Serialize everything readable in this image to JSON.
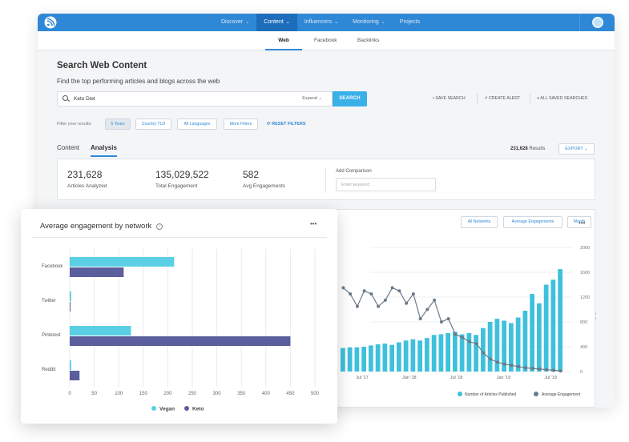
{
  "topnav": {
    "items": [
      {
        "label": "Discover",
        "chevron": true,
        "active": false
      },
      {
        "label": "Content",
        "chevron": true,
        "active": true
      },
      {
        "label": "Influencers",
        "chevron": true,
        "active": false
      },
      {
        "label": "Monitoring",
        "chevron": true,
        "active": false
      },
      {
        "label": "Projects",
        "chevron": false,
        "active": false
      }
    ],
    "accent": "#2f88d6"
  },
  "subtabs": [
    "Web",
    "Facebook",
    "Backlinks"
  ],
  "page": {
    "title": "Search Web Content",
    "subtitle": "Find the top performing articles and blogs across the web"
  },
  "search": {
    "value": "Keto Diet",
    "expand_label": "Expand",
    "button_label": "SEARCH"
  },
  "actions": {
    "save_search": "SAVE SEARCH",
    "create_alert": "CREATE ALERT",
    "all_saved": "ALL SAVED SEARCHES"
  },
  "filters": {
    "label": "Filter your results:",
    "chips": [
      "5 Years",
      "Country TLD",
      "All Languages",
      "More Filters"
    ],
    "reset": "RESET FILTERS"
  },
  "view_tabs": {
    "content": "Content",
    "analysis": "Analysis"
  },
  "results": {
    "count": "231,628",
    "suffix": "Results",
    "export_label": "EXPORT"
  },
  "stats": [
    {
      "value": "231,628",
      "label": "Articles Analyzed"
    },
    {
      "value": "135,029,522",
      "label": "Total Engagement"
    },
    {
      "value": "582",
      "label": "Avg Engagements"
    }
  ],
  "comparison": {
    "label": "Add Comparison",
    "placeholder": "Enter keyword"
  },
  "chart_controls": [
    "All Networks",
    "Average Engagements",
    "Month"
  ],
  "chart_data": [
    {
      "type": "bar",
      "title": "Average engagement by network",
      "orientation": "horizontal",
      "categories": [
        "Facebook",
        "Twitter",
        "Pinterest",
        "Reddit"
      ],
      "series": [
        {
          "name": "Vegan",
          "color": "#5bcfe3",
          "values": [
            213,
            3,
            125,
            3
          ]
        },
        {
          "name": "Keto",
          "color": "#5b5e9c",
          "values": [
            110,
            1,
            450,
            20
          ]
        }
      ],
      "xticks": [
        0,
        50,
        100,
        150,
        200,
        250,
        300,
        350,
        400,
        450,
        500
      ],
      "xlim": [
        0,
        500
      ],
      "grid": true,
      "legend": "bottom"
    },
    {
      "type": "bar+line",
      "x_ticks": [
        "Jul '17",
        "Jan '18",
        "Jul '18",
        "Jan '19",
        "Jul '19"
      ],
      "y_right_label": "Number of Engagements",
      "y_right_ticks": [
        0,
        400,
        800,
        1200,
        1600,
        2000
      ],
      "ylim": [
        0,
        2000
      ],
      "series": [
        {
          "name": "Number of Articles Published",
          "type": "bar",
          "color": "#3fc0dc",
          "values": [
            380,
            390,
            390,
            400,
            420,
            440,
            450,
            430,
            470,
            500,
            520,
            500,
            540,
            590,
            600,
            620,
            640,
            600,
            620,
            590,
            700,
            800,
            850,
            820,
            780,
            870,
            980,
            1250,
            1100,
            1400,
            1480,
            1650
          ]
        },
        {
          "name": "Average Engagement",
          "type": "line",
          "color": "#6b7a88",
          "values": [
            1350,
            1250,
            1050,
            1300,
            1250,
            1050,
            1150,
            1350,
            1300,
            1100,
            1250,
            850,
            1000,
            1150,
            800,
            850,
            600,
            550,
            480,
            450,
            300,
            200,
            150,
            120,
            100,
            80,
            60,
            50,
            40,
            30,
            20,
            10
          ]
        }
      ],
      "legend": "bottom"
    }
  ]
}
